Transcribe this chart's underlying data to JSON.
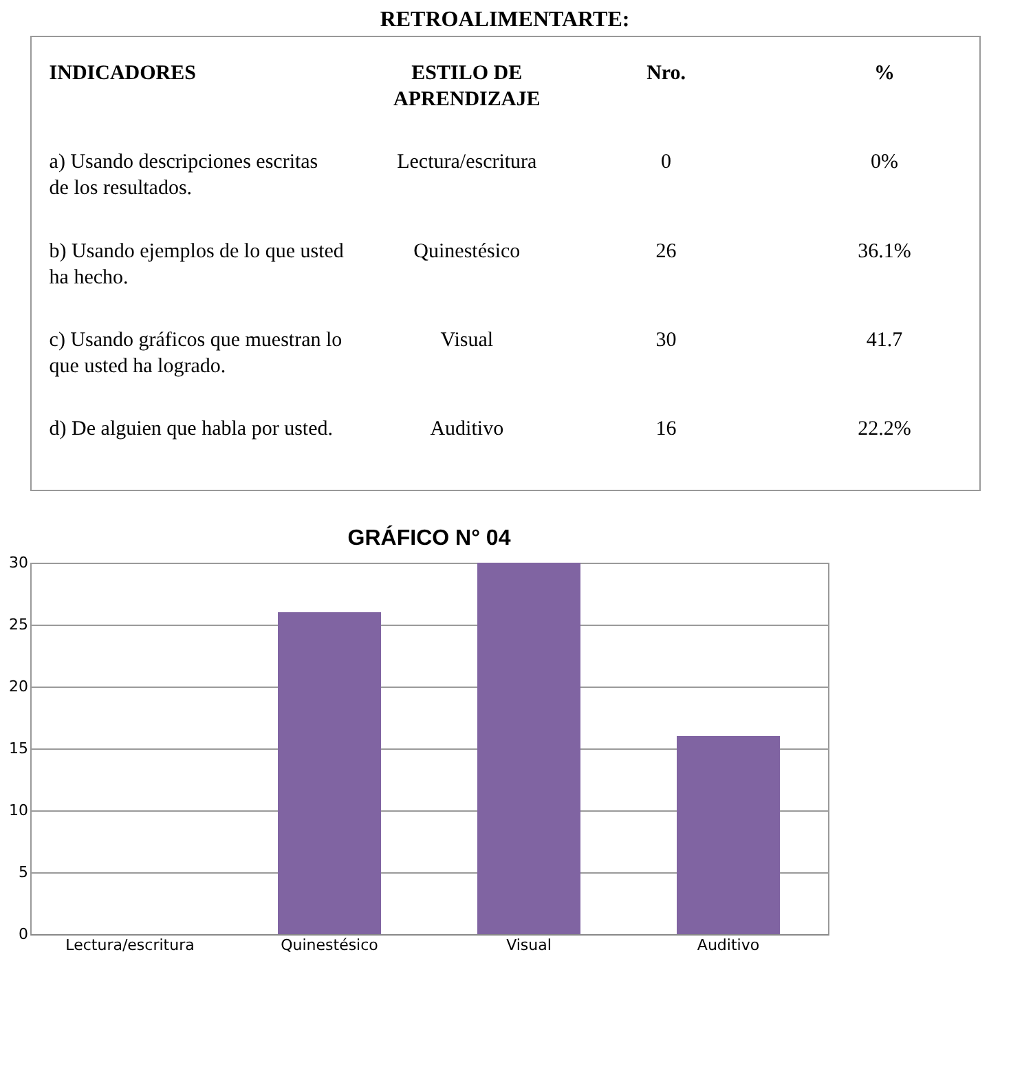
{
  "chart_data": {
    "type": "bar",
    "title": "GRÁFICO  N° 04",
    "categories": [
      "Lectura/escritura",
      "Quinestésico",
      "Visual",
      "Auditivo"
    ],
    "values": [
      0,
      26,
      30,
      16
    ],
    "color": "#8064a2",
    "ylim": [
      0,
      30
    ],
    "yticks": [
      0,
      5,
      10,
      15,
      20,
      25,
      30
    ],
    "grid": "y",
    "annotations": [
      "RETROALIMENTARTE:",
      "INDICADORES",
      "ESTILO DE APRENDIZAJE",
      "Nro.",
      "%",
      "a) Usando descripciones escritas de los resultados.",
      "Lectura/escritura",
      "0",
      "0%",
      "b) Usando ejemplos de lo que usted ha hecho.",
      "Quinestésico",
      "26",
      "36.1%",
      "c) Usando gráficos que muestran lo que usted ha logrado.",
      "Visual",
      "30",
      "41.7",
      "d) De alguien que habla por usted.",
      "Auditivo",
      "16",
      "22.2%"
    ]
  }
}
